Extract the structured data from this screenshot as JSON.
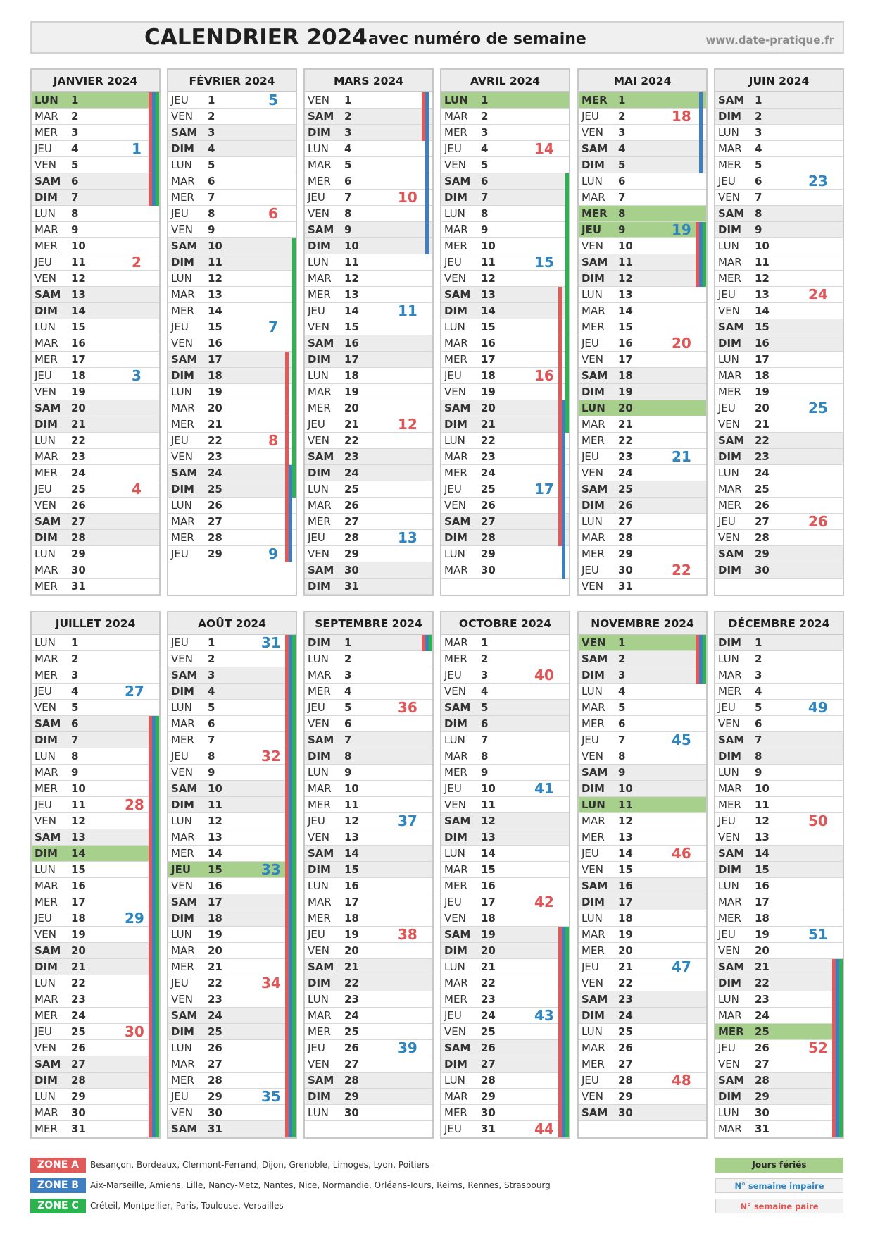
{
  "header": {
    "title": "CALENDRIER 2024",
    "subtitle": "avec  numéro de semaine",
    "website": "www.date-pratique.fr"
  },
  "colors": {
    "zone_a": "#e05a5a",
    "zone_b": "#3e7fc1",
    "zone_c": "#2bb34f",
    "holiday": "#a8d08d",
    "weekend": "#ececec",
    "week_odd": "#2e86c1",
    "week_even": "#e05555"
  },
  "day_abbr": [
    "LUN",
    "MAR",
    "MER",
    "JEU",
    "VEN",
    "SAM",
    "DIM"
  ],
  "months": [
    {
      "name": "JANVIER 2024",
      "days": 31,
      "first_weekday": 0,
      "holidays": [
        1
      ],
      "bars": {
        "A": [
          [
            1,
            7
          ]
        ],
        "B": [
          [
            1,
            7
          ]
        ],
        "C": [
          [
            1,
            7
          ]
        ]
      }
    },
    {
      "name": "FÉVRIER 2024",
      "days": 29,
      "first_weekday": 3,
      "holidays": [],
      "bars": {
        "A": [
          [
            17,
            29
          ]
        ],
        "B": [
          [
            24,
            29
          ]
        ],
        "C": [
          [
            10,
            25
          ]
        ]
      }
    },
    {
      "name": "MARS 2024",
      "days": 31,
      "first_weekday": 4,
      "holidays": [],
      "bars": {
        "A": [
          [
            1,
            3
          ]
        ],
        "B": [
          [
            1,
            10
          ]
        ],
        "C": []
      }
    },
    {
      "name": "AVRIL 2024",
      "days": 30,
      "first_weekday": 0,
      "holidays": [
        1
      ],
      "bars": {
        "A": [
          [
            13,
            28
          ]
        ],
        "B": [
          [
            20,
            30
          ]
        ],
        "C": [
          [
            6,
            21
          ]
        ]
      }
    },
    {
      "name": "MAI 2024",
      "days": 31,
      "first_weekday": 2,
      "holidays": [
        1,
        8,
        9,
        20
      ],
      "bars": {
        "A": [
          [
            9,
            12
          ]
        ],
        "B": [
          [
            1,
            5
          ],
          [
            9,
            12
          ]
        ],
        "C": [
          [
            9,
            12
          ]
        ]
      }
    },
    {
      "name": "JUIN 2024",
      "days": 30,
      "first_weekday": 5,
      "holidays": [],
      "bars": {
        "A": [],
        "B": [],
        "C": []
      }
    },
    {
      "name": "JUILLET 2024",
      "days": 31,
      "first_weekday": 0,
      "holidays": [
        14
      ],
      "bars": {
        "A": [
          [
            6,
            31
          ]
        ],
        "B": [
          [
            6,
            31
          ]
        ],
        "C": [
          [
            6,
            31
          ]
        ]
      }
    },
    {
      "name": "AOÛT 2024",
      "days": 31,
      "first_weekday": 3,
      "holidays": [
        15
      ],
      "bars": {
        "A": [
          [
            1,
            31
          ]
        ],
        "B": [
          [
            1,
            31
          ]
        ],
        "C": [
          [
            1,
            31
          ]
        ]
      }
    },
    {
      "name": "SEPTEMBRE 2024",
      "days": 30,
      "first_weekday": 6,
      "holidays": [],
      "bars": {
        "A": [
          [
            1,
            1
          ]
        ],
        "B": [
          [
            1,
            1
          ]
        ],
        "C": [
          [
            1,
            1
          ]
        ]
      }
    },
    {
      "name": "OCTOBRE 2024",
      "days": 31,
      "first_weekday": 1,
      "holidays": [],
      "bars": {
        "A": [
          [
            19,
            31
          ]
        ],
        "B": [
          [
            19,
            31
          ]
        ],
        "C": [
          [
            19,
            31
          ]
        ]
      }
    },
    {
      "name": "NOVEMBRE 2024",
      "days": 30,
      "first_weekday": 4,
      "holidays": [
        1,
        11
      ],
      "bars": {
        "A": [
          [
            1,
            3
          ]
        ],
        "B": [
          [
            1,
            3
          ]
        ],
        "C": [
          [
            1,
            3
          ]
        ]
      }
    },
    {
      "name": "DÉCEMBRE 2024",
      "days": 31,
      "first_weekday": 6,
      "holidays": [
        25
      ],
      "bars": {
        "A": [
          [
            21,
            31
          ]
        ],
        "B": [
          [
            21,
            31
          ]
        ],
        "C": [
          [
            21,
            31
          ]
        ]
      }
    }
  ],
  "legend": {
    "zones": [
      {
        "label": "ZONE A",
        "cities": "Besançon, Bordeaux, Clermont-Ferrand, Dijon, Grenoble, Limoges, Lyon, Poitiers",
        "color": "#e05a5a"
      },
      {
        "label": "ZONE B",
        "cities": "Aix-Marseille, Amiens, Lille, Nancy-Metz, Nantes, Nice,  Normandie, Orléans-Tours, Reims, Rennes, Strasbourg",
        "color": "#3e7fc1"
      },
      {
        "label": "ZONE C",
        "cities": "Créteil, Montpellier, Paris, Toulouse, Versailles",
        "color": "#2bb34f"
      }
    ],
    "holidays_label": "Jours fériés",
    "odd_week_label": "N° semaine impaire",
    "even_week_label": "N° semaine paire"
  }
}
